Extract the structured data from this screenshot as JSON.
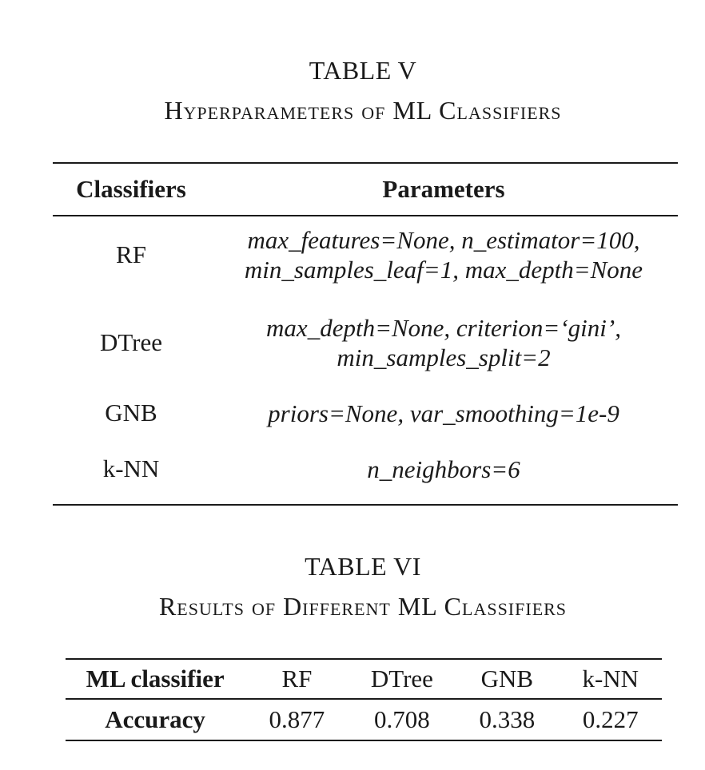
{
  "table_v": {
    "label": "TABLE V",
    "title": "Hyperparameters of ML Classifiers",
    "headers": [
      "Classifiers",
      "Parameters"
    ],
    "rows": [
      {
        "classifier": "RF",
        "params": [
          "max_features=None, n_estimator=100,",
          "min_samples_leaf=1, max_depth=None"
        ]
      },
      {
        "classifier": "DTree",
        "params": [
          "max_depth=None, criterion=‘gini’,",
          "min_samples_split=2"
        ]
      },
      {
        "classifier": "GNB",
        "params": [
          "priors=None, var_smoothing=1e-9"
        ]
      },
      {
        "classifier": "k-NN",
        "params": [
          "n_neighbors=6"
        ]
      }
    ]
  },
  "table_vi": {
    "label": "TABLE VI",
    "title": "Results of Different ML Classifiers",
    "header": [
      "ML classifier",
      "RF",
      "DTree",
      "GNB",
      "k-NN"
    ],
    "row": [
      "Accuracy",
      "0.877",
      "0.708",
      "0.338",
      "0.227"
    ]
  }
}
